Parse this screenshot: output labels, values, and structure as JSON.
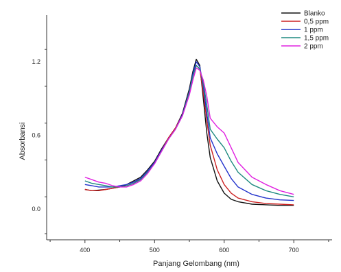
{
  "chart_data": {
    "type": "line",
    "xlabel": "Panjang Gelombang (nm)",
    "ylabel": "Absorbansi",
    "xlim": [
      345,
      755
    ],
    "ylim": [
      -0.25,
      1.58
    ],
    "xticks": [
      {
        "value": 400,
        "label": "400"
      },
      {
        "value": 500,
        "label": "500"
      },
      {
        "value": 600,
        "label": "600"
      },
      {
        "value": 700,
        "label": "700"
      }
    ],
    "yticks": [
      {
        "value": 0.0,
        "label": "0.0"
      },
      {
        "value": 0.6,
        "label": "0.6"
      },
      {
        "value": 1.2,
        "label": "1.2"
      }
    ],
    "legend_position": "top-right",
    "grid": false,
    "series": [
      {
        "name": "Blanko",
        "color": "#111111",
        "points": [
          [
            400,
            0.16
          ],
          [
            410,
            0.15
          ],
          [
            420,
            0.155
          ],
          [
            430,
            0.16
          ],
          [
            440,
            0.17
          ],
          [
            450,
            0.18
          ],
          [
            460,
            0.2
          ],
          [
            470,
            0.23
          ],
          [
            480,
            0.26
          ],
          [
            490,
            0.32
          ],
          [
            500,
            0.39
          ],
          [
            510,
            0.49
          ],
          [
            520,
            0.58
          ],
          [
            530,
            0.66
          ],
          [
            540,
            0.78
          ],
          [
            550,
            0.98
          ],
          [
            555,
            1.12
          ],
          [
            560,
            1.22
          ],
          [
            565,
            1.17
          ],
          [
            570,
            0.9
          ],
          [
            575,
            0.62
          ],
          [
            580,
            0.42
          ],
          [
            590,
            0.23
          ],
          [
            600,
            0.13
          ],
          [
            610,
            0.08
          ],
          [
            620,
            0.06
          ],
          [
            640,
            0.04
          ],
          [
            660,
            0.035
          ],
          [
            680,
            0.03
          ],
          [
            700,
            0.03
          ]
        ]
      },
      {
        "name": "0,5 ppm",
        "color": "#cc2222",
        "points": [
          [
            400,
            0.16
          ],
          [
            410,
            0.15
          ],
          [
            420,
            0.15
          ],
          [
            430,
            0.16
          ],
          [
            440,
            0.17
          ],
          [
            450,
            0.18
          ],
          [
            460,
            0.19
          ],
          [
            470,
            0.21
          ],
          [
            480,
            0.25
          ],
          [
            490,
            0.31
          ],
          [
            500,
            0.38
          ],
          [
            510,
            0.48
          ],
          [
            520,
            0.58
          ],
          [
            530,
            0.66
          ],
          [
            540,
            0.77
          ],
          [
            550,
            0.96
          ],
          [
            555,
            1.09
          ],
          [
            560,
            1.17
          ],
          [
            565,
            1.14
          ],
          [
            570,
            0.95
          ],
          [
            575,
            0.72
          ],
          [
            580,
            0.52
          ],
          [
            590,
            0.32
          ],
          [
            600,
            0.2
          ],
          [
            610,
            0.13
          ],
          [
            620,
            0.09
          ],
          [
            640,
            0.06
          ],
          [
            660,
            0.045
          ],
          [
            680,
            0.04
          ],
          [
            700,
            0.035
          ]
        ]
      },
      {
        "name": "1 ppm",
        "color": "#2233cc",
        "points": [
          [
            400,
            0.2
          ],
          [
            410,
            0.19
          ],
          [
            420,
            0.18
          ],
          [
            430,
            0.18
          ],
          [
            440,
            0.18
          ],
          [
            450,
            0.19
          ],
          [
            460,
            0.2
          ],
          [
            470,
            0.22
          ],
          [
            480,
            0.25
          ],
          [
            490,
            0.31
          ],
          [
            500,
            0.38
          ],
          [
            510,
            0.48
          ],
          [
            520,
            0.57
          ],
          [
            530,
            0.65
          ],
          [
            540,
            0.77
          ],
          [
            550,
            0.96
          ],
          [
            555,
            1.1
          ],
          [
            560,
            1.2
          ],
          [
            565,
            1.16
          ],
          [
            570,
            1.0
          ],
          [
            575,
            0.78
          ],
          [
            580,
            0.58
          ],
          [
            590,
            0.45
          ],
          [
            600,
            0.35
          ],
          [
            610,
            0.25
          ],
          [
            620,
            0.18
          ],
          [
            640,
            0.12
          ],
          [
            660,
            0.09
          ],
          [
            680,
            0.075
          ],
          [
            700,
            0.07
          ]
        ]
      },
      {
        "name": "1,5 ppm",
        "color": "#1f8a80",
        "points": [
          [
            400,
            0.23
          ],
          [
            410,
            0.21
          ],
          [
            420,
            0.2
          ],
          [
            430,
            0.19
          ],
          [
            440,
            0.18
          ],
          [
            450,
            0.18
          ],
          [
            460,
            0.19
          ],
          [
            470,
            0.21
          ],
          [
            480,
            0.24
          ],
          [
            490,
            0.3
          ],
          [
            500,
            0.37
          ],
          [
            510,
            0.47
          ],
          [
            520,
            0.57
          ],
          [
            530,
            0.65
          ],
          [
            540,
            0.76
          ],
          [
            550,
            0.95
          ],
          [
            555,
            1.08
          ],
          [
            560,
            1.17
          ],
          [
            565,
            1.14
          ],
          [
            570,
            1.03
          ],
          [
            575,
            0.85
          ],
          [
            580,
            0.65
          ],
          [
            590,
            0.57
          ],
          [
            600,
            0.5
          ],
          [
            610,
            0.39
          ],
          [
            620,
            0.3
          ],
          [
            640,
            0.2
          ],
          [
            660,
            0.15
          ],
          [
            680,
            0.12
          ],
          [
            700,
            0.1
          ]
        ]
      },
      {
        "name": "2 ppm",
        "color": "#e020e0",
        "points": [
          [
            400,
            0.26
          ],
          [
            410,
            0.24
          ],
          [
            420,
            0.22
          ],
          [
            430,
            0.21
          ],
          [
            440,
            0.19
          ],
          [
            450,
            0.18
          ],
          [
            460,
            0.18
          ],
          [
            470,
            0.2
          ],
          [
            480,
            0.23
          ],
          [
            490,
            0.29
          ],
          [
            500,
            0.37
          ],
          [
            510,
            0.47
          ],
          [
            520,
            0.57
          ],
          [
            530,
            0.65
          ],
          [
            540,
            0.76
          ],
          [
            550,
            0.93
          ],
          [
            555,
            1.05
          ],
          [
            560,
            1.15
          ],
          [
            565,
            1.13
          ],
          [
            570,
            1.05
          ],
          [
            575,
            0.92
          ],
          [
            580,
            0.74
          ],
          [
            590,
            0.67
          ],
          [
            600,
            0.62
          ],
          [
            610,
            0.5
          ],
          [
            620,
            0.38
          ],
          [
            640,
            0.26
          ],
          [
            660,
            0.2
          ],
          [
            680,
            0.15
          ],
          [
            700,
            0.12
          ]
        ]
      }
    ]
  }
}
